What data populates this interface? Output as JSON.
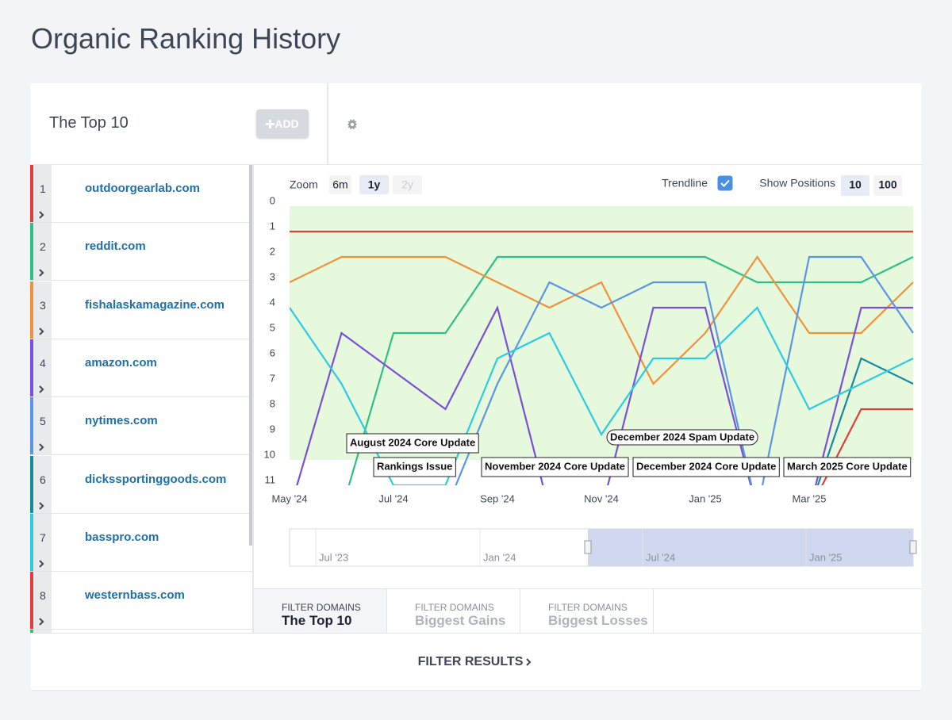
{
  "title": "Organic Ranking History",
  "panel": {
    "title": "The Top 10",
    "add_button": "ADD"
  },
  "sidebar": {
    "ranks": [
      1,
      2,
      3,
      4,
      5,
      6,
      7,
      8
    ]
  },
  "controls": {
    "zoom_label": "Zoom",
    "zoom_options": [
      "6m",
      "1y",
      "2y"
    ],
    "zoom_active": 1,
    "zoom_disabled": 2,
    "trendline_label": "Trendline",
    "trendline_checked": true,
    "positions_label": "Show Positions",
    "positions_options": [
      10,
      100
    ],
    "positions_active": 0
  },
  "chart_data": {
    "type": "line",
    "y_inverted": true,
    "categories": [
      "May '24",
      null,
      "Jul '24",
      null,
      "Sep '24",
      null,
      "Nov '24",
      null,
      "Jan '25",
      null,
      "Mar '25",
      null,
      null
    ],
    "ylim": [
      0,
      11
    ],
    "yticks": [
      0,
      1,
      2,
      3,
      4,
      5,
      6,
      7,
      8,
      9,
      10,
      11
    ],
    "highlight_range": [
      0,
      10
    ],
    "highlight_color": "#e6f9dc",
    "series": [
      {
        "name": "outdoorgearlab.com",
        "color": "#e23d3d",
        "values": [
          1,
          1,
          1,
          1,
          1,
          1,
          1,
          1,
          1,
          1,
          1,
          1,
          1
        ]
      },
      {
        "name": "reddit.com",
        "color": "#2fbf86",
        "values": [
          null,
          12,
          5,
          5,
          2,
          2,
          2,
          2,
          2,
          3,
          3,
          3,
          2
        ]
      },
      {
        "name": "fishalaskamagazine.com",
        "color": "#f0913b",
        "values": [
          3,
          2,
          2,
          2,
          3,
          4,
          3,
          7,
          5,
          2,
          5,
          5,
          3
        ]
      },
      {
        "name": "amazon.com",
        "color": "#7b4fd8",
        "values": [
          12,
          5,
          6.5,
          8,
          4,
          12,
          12,
          4,
          4,
          12,
          12,
          4,
          4
        ]
      },
      {
        "name": "nytimes.com",
        "color": "#5b96e4",
        "values": [
          null,
          null,
          null,
          12,
          7,
          3,
          4,
          3,
          3,
          12,
          2,
          2,
          5
        ]
      },
      {
        "name": "dickssportinggoods.com",
        "color": "#16899a",
        "values": [
          null,
          null,
          null,
          null,
          null,
          null,
          null,
          null,
          null,
          null,
          12,
          6,
          7
        ]
      },
      {
        "name": "basspro.com",
        "color": "#2ccbe2",
        "values": [
          4,
          7,
          11,
          11,
          6,
          5,
          9,
          6,
          6,
          4,
          8,
          7,
          6
        ]
      },
      {
        "name": "westernbass.com",
        "color": "#e23d3d",
        "values": [
          null,
          null,
          null,
          null,
          null,
          null,
          null,
          null,
          null,
          null,
          12,
          8,
          8
        ]
      }
    ],
    "annotations": [
      "August 2024 Core Update",
      "Rankings Issue",
      "November 2024 Core Update",
      "December 2024 Spam Update",
      "December 2024 Core Update",
      "March 2025 Core Update"
    ],
    "navigator_labels": [
      "Jul '23",
      "Jan '24",
      "Jul '24",
      "Jan '25"
    ]
  },
  "tabs": [
    {
      "kicker": "FILTER DOMAINS",
      "label": "The Top 10"
    },
    {
      "kicker": "FILTER DOMAINS",
      "label": "Biggest Gains"
    },
    {
      "kicker": "FILTER DOMAINS",
      "label": "Biggest Losses"
    }
  ],
  "tab_active": 0,
  "footer_button": "FILTER RESULTS"
}
